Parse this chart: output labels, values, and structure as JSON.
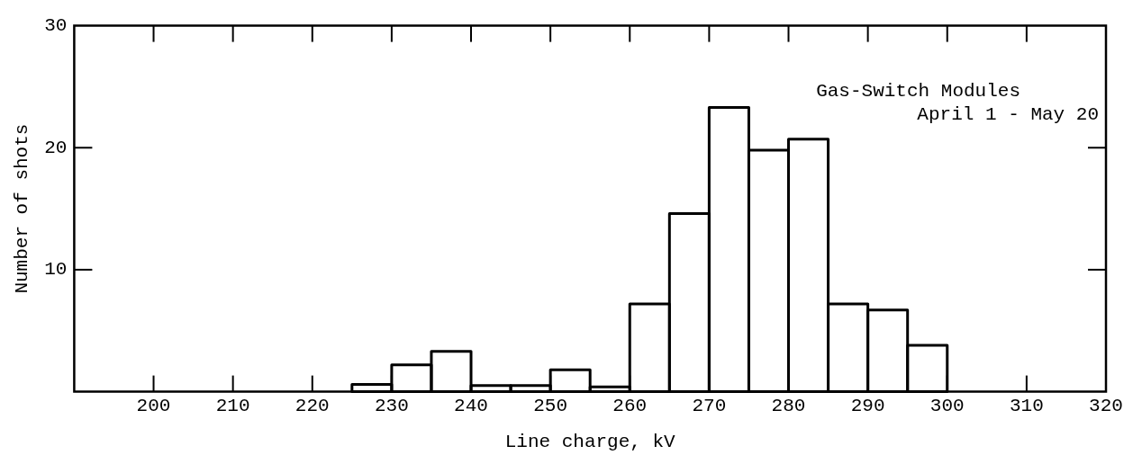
{
  "chart_data": {
    "type": "histogram",
    "xlabel": "Line charge, kV",
    "ylabel": "Number of shots",
    "annotations": [
      "Gas-Switch Modules",
      "April 1 - May 20"
    ],
    "bins": [
      225,
      230,
      235,
      240,
      245,
      250,
      255,
      260,
      265,
      270,
      275,
      280,
      285,
      290,
      295,
      300
    ],
    "values": [
      0.6,
      2.2,
      3.3,
      0.5,
      0.5,
      1.8,
      0.4,
      7.2,
      14.6,
      23.3,
      19.8,
      20.7,
      7.2,
      6.7,
      3.8
    ],
    "color": "#000000",
    "xlim": [
      190,
      320
    ],
    "xticks": [
      200,
      210,
      220,
      230,
      240,
      250,
      260,
      270,
      280,
      290,
      300,
      310,
      320
    ],
    "ylim": [
      0,
      30
    ],
    "yticks": [
      10,
      20,
      30
    ],
    "grid": false,
    "legend": false
  }
}
